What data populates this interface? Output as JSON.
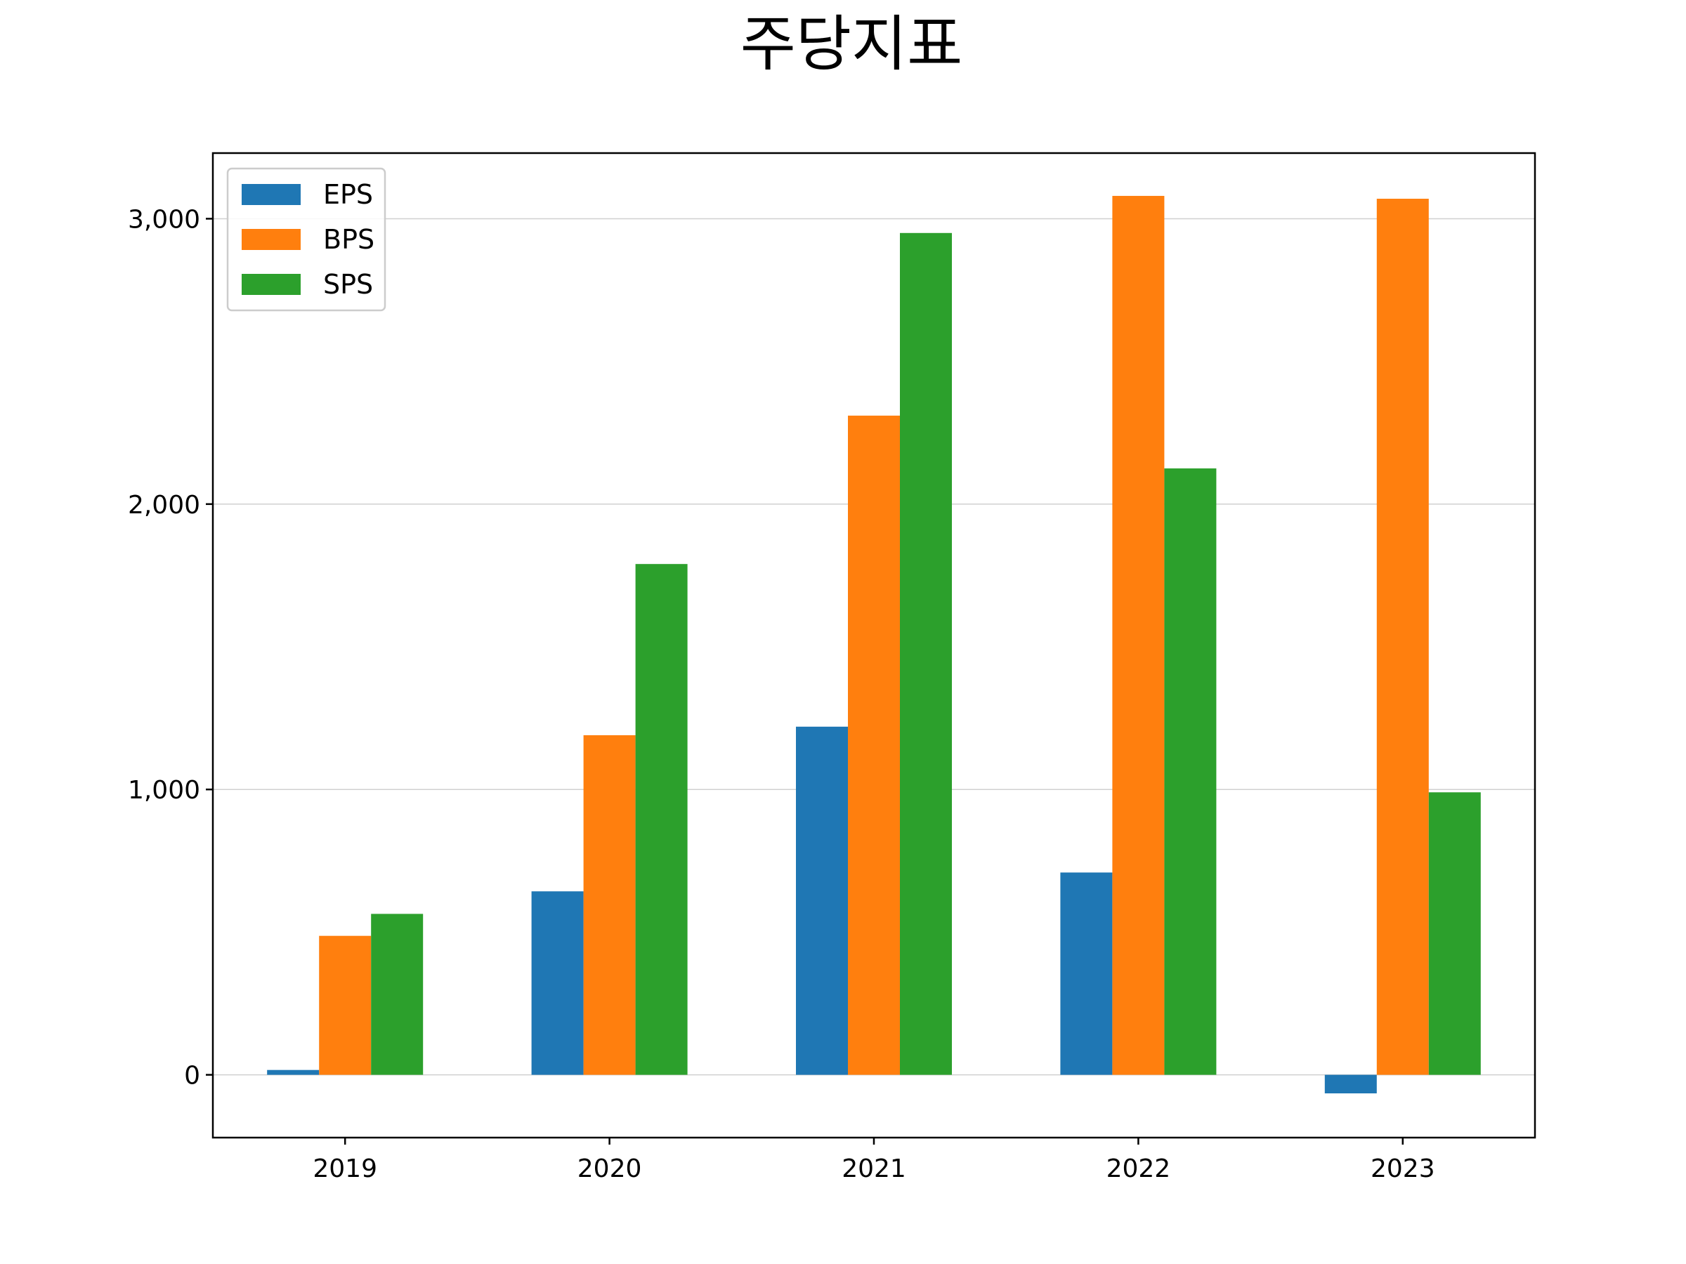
{
  "chart_data": {
    "type": "bar",
    "title": "주당지표",
    "xlabel": "",
    "ylabel": "",
    "categories": [
      "2019",
      "2020",
      "2021",
      "2022",
      "2023"
    ],
    "series": [
      {
        "name": "EPS",
        "color": "#1f77b4",
        "values": [
          17,
          643,
          1220,
          709,
          -65
        ]
      },
      {
        "name": "BPS",
        "color": "#ff7f0e",
        "values": [
          487,
          1190,
          2310,
          3080,
          3070
        ]
      },
      {
        "name": "SPS",
        "color": "#2ca02c",
        "values": [
          564,
          1790,
          2950,
          2125,
          990
        ]
      }
    ],
    "ylim": [
      -220,
      3230
    ],
    "yticks": [
      0,
      1000,
      2000,
      3000
    ],
    "ytick_labels": [
      "0",
      "1,000",
      "2,000",
      "3,000"
    ],
    "grid": "y-major",
    "legend": "top-left"
  }
}
